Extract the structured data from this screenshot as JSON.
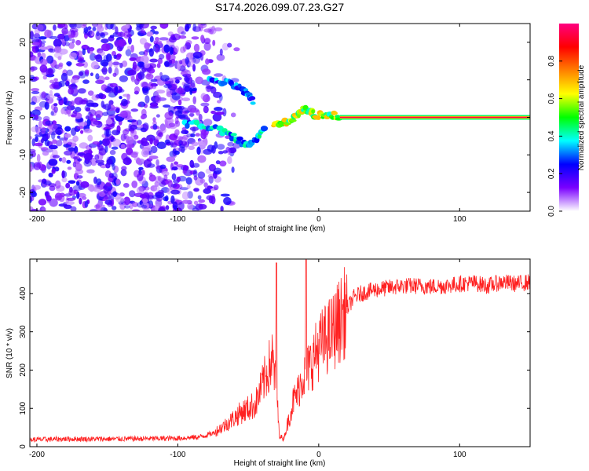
{
  "title": "S174.2026.099.07.23.G27",
  "chart_data": [
    {
      "type": "heatmap",
      "xlabel": "Height of straight line (km)",
      "ylabel": "Frequency (Hz)",
      "xlim": [
        -205,
        150
      ],
      "ylim": [
        -25,
        25
      ],
      "xticks": [
        -200,
        -100,
        0,
        100
      ],
      "yticks": [
        -20,
        -10,
        0,
        10,
        20
      ],
      "colorbar": {
        "label": "Normalized spectral amplitude",
        "range": [
          0,
          1
        ],
        "ticks": [
          "0.0",
          "0.2",
          "0.4",
          "0.6",
          "0.8"
        ],
        "tick_values": [
          0.0,
          0.2,
          0.4,
          0.6,
          0.8
        ],
        "colors": [
          "#ffffff",
          "#7a00ff",
          "#0000ff",
          "#00ffff",
          "#00ff00",
          "#ffff00",
          "#ff8000",
          "#ff0000",
          "#ff0080"
        ]
      },
      "features": [
        {
          "name": "noise region",
          "x_range": [
            -205,
            -70
          ],
          "f_range": [
            -25,
            25
          ],
          "amplitude": [
            0.05,
            0.25
          ]
        },
        {
          "name": "upper arc",
          "x": [
            -78,
            -70,
            -62,
            -55,
            -50,
            -46
          ],
          "f": [
            10,
            9.5,
            9,
            8,
            6,
            4
          ],
          "amplitude": 0.3
        },
        {
          "name": "lower cluster",
          "x": [
            -95,
            -85,
            -75,
            -65,
            -58,
            -52,
            -46,
            -42,
            -38
          ],
          "f": [
            -1.5,
            -2,
            -2.5,
            -4,
            -6,
            -7,
            -6.5,
            -5,
            -3
          ],
          "amplitude": 0.35
        },
        {
          "name": "transition",
          "x": [
            -32,
            -26,
            -20,
            -15,
            -10,
            -6,
            -2,
            4,
            10,
            15
          ],
          "f": [
            -2,
            -1.5,
            -1,
            1,
            2,
            1.5,
            0.5,
            0.8,
            0.5,
            0.2
          ],
          "amplitude": 0.55
        },
        {
          "name": "carrier line",
          "x_range": [
            15,
            150
          ],
          "f": 0,
          "amplitude": 0.95
        }
      ]
    },
    {
      "type": "line",
      "xlabel": "Height of straight line (km)",
      "ylabel": "SNR (10 * v/v)",
      "xlim": [
        -205,
        150
      ],
      "ylim": [
        0,
        490
      ],
      "xticks": [
        -200,
        -100,
        0,
        100
      ],
      "yticks": [
        0,
        100,
        200,
        300,
        400
      ],
      "color": "#ff2020",
      "series": [
        {
          "name": "SNR",
          "x": [
            -205,
            -180,
            -150,
            -120,
            -100,
            -85,
            -75,
            -65,
            -55,
            -45,
            -38,
            -33,
            -30,
            -28,
            -25,
            -22,
            -18,
            -15,
            -12,
            -8,
            -5,
            0,
            5,
            10,
            15,
            20,
            25,
            30,
            40,
            50,
            60,
            70,
            80,
            90,
            100,
            110,
            120,
            130,
            140,
            150
          ],
          "y": [
            18,
            20,
            20,
            21,
            22,
            25,
            35,
            60,
            90,
            110,
            180,
            230,
            150,
            30,
            20,
            60,
            120,
            140,
            180,
            200,
            220,
            260,
            280,
            300,
            330,
            360,
            390,
            400,
            410,
            415,
            420,
            420,
            418,
            420,
            425,
            428,
            420,
            430,
            425,
            430
          ]
        }
      ],
      "spikes": [
        {
          "x": -30,
          "y": 480
        },
        {
          "x": -9,
          "y": 488
        }
      ]
    }
  ]
}
